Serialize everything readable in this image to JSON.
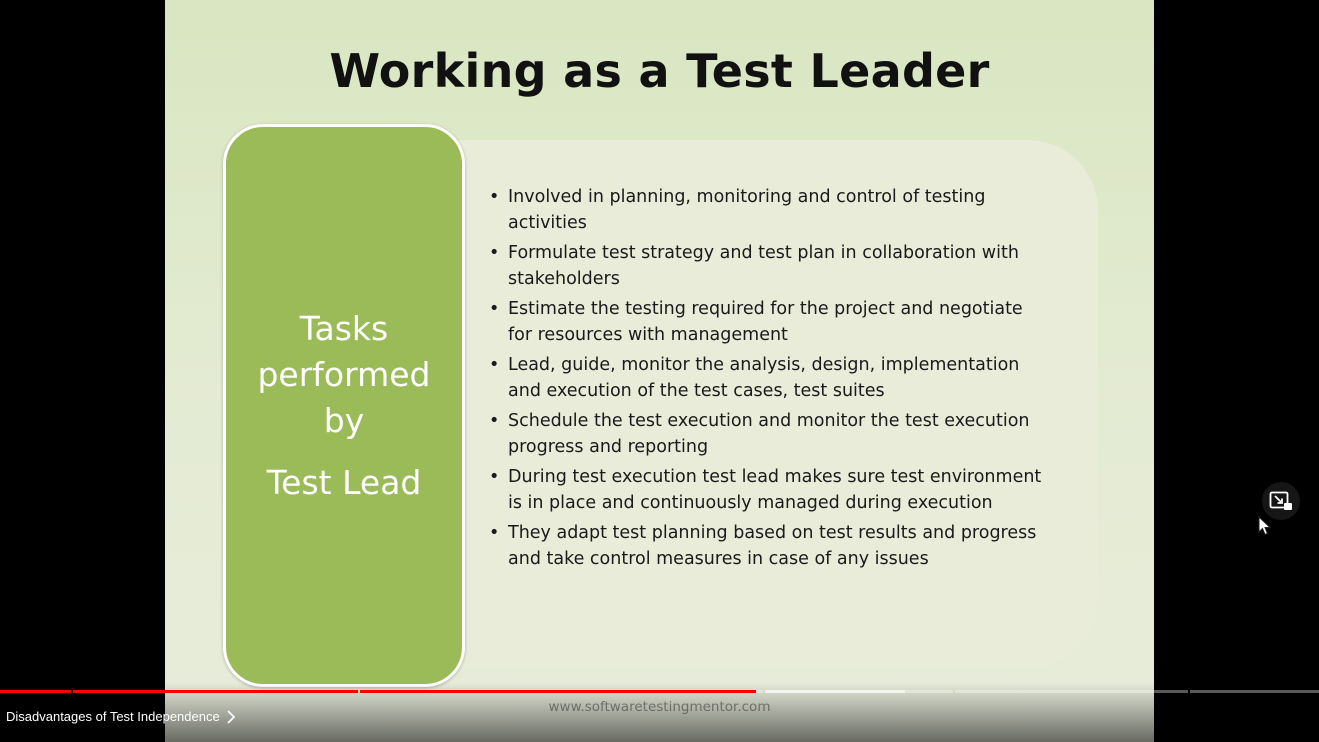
{
  "slide": {
    "title": "Working as a Test Leader",
    "side_box": {
      "line1": "Tasks",
      "line2": "performed",
      "line3": "by",
      "line4": "Test Lead"
    },
    "bullets": [
      "Involved in planning, monitoring and control of testing activities",
      "Formulate test strategy and test plan in collaboration with stakeholders",
      "Estimate the testing required for the project and negotiate for resources with management",
      "Lead, guide, monitor the analysis, design, implementation and execution of the test cases, test suites",
      "Schedule the test execution and monitor the test execution progress and reporting",
      "During test execution test lead makes sure test environment is in place and continuously managed during execution",
      "They adapt test planning based on test results and progress and take control measures in case of any issues"
    ],
    "watermark": "www.softwaretestingmentor.com"
  },
  "player": {
    "chapter_title": "Disadvantages of Test Independence",
    "played_fraction": 0.573,
    "icons": {
      "chapter_chevron": "chevron-right-icon",
      "pip": "miniplayer-icon",
      "cursor": "mouse-cursor-icon"
    },
    "colors": {
      "progress_played": "#ff0000",
      "side_box": "#9bbb59"
    }
  }
}
